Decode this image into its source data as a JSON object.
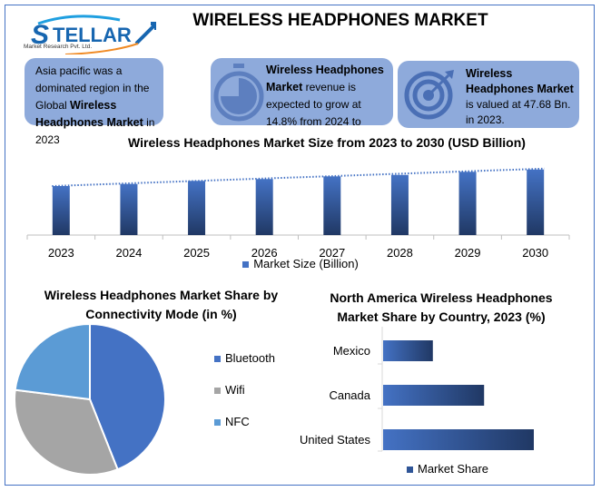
{
  "logo": {
    "text": "STELLAR",
    "subtitle": "Market Research Pvt. Ltd."
  },
  "header": {
    "title": "WIRELESS HEADPHONES MARKET"
  },
  "cards": [
    {
      "icon": "globe-region",
      "text_pre": "Asia pacific was a dominated region in the Global ",
      "bold": "Wireless Headphones Market",
      "text_post": " in 2023"
    },
    {
      "icon": "stopwatch-icon",
      "bold": "Wireless Headphones Market",
      "text_post": " revenue is expected to grow at 14.8% from 2024 to"
    },
    {
      "icon": "target-icon",
      "bold": "Wireless Headphones  Market",
      "text_post": " is valued at 47.68 Bn. in 2023."
    }
  ],
  "colors": {
    "accent": "#4472c4",
    "card": "#8eaadb",
    "bar_dark": "#203864",
    "bluetooth": "#4472c4",
    "wifi": "#a5a5a5",
    "nfc": "#5b9bd5"
  },
  "chart_data": [
    {
      "type": "bar",
      "title": "Wireless Headphones Market Size from 2023 to 2030 (USD Billion)",
      "categories": [
        "2023",
        "2024",
        "2025",
        "2026",
        "2027",
        "2028",
        "2029",
        "2030"
      ],
      "series": [
        {
          "name": "Market Size (Billion)",
          "values": [
            47.68,
            49.7,
            52.7,
            54.5,
            57.1,
            58.5,
            61.5,
            63.8
          ]
        }
      ],
      "trendline": "linear, dotted",
      "legend": "bottom",
      "grid": false
    },
    {
      "type": "pie",
      "title": "Wireless Headphones Market Share by Connectivity Mode (in %)",
      "categories": [
        "Bluetooth",
        "Wifi",
        "NFC"
      ],
      "values": [
        44,
        33,
        23
      ],
      "legend": "right"
    },
    {
      "type": "bar",
      "orientation": "horizontal",
      "title": "North America Wireless Headphones Market Share by Country, 2023 (%)",
      "categories": [
        "Mexico",
        "Canada",
        "United States"
      ],
      "series": [
        {
          "name": "Market Share",
          "values": [
            16.5,
            33.5,
            50
          ]
        }
      ],
      "legend": "bottom",
      "grid": false
    }
  ]
}
